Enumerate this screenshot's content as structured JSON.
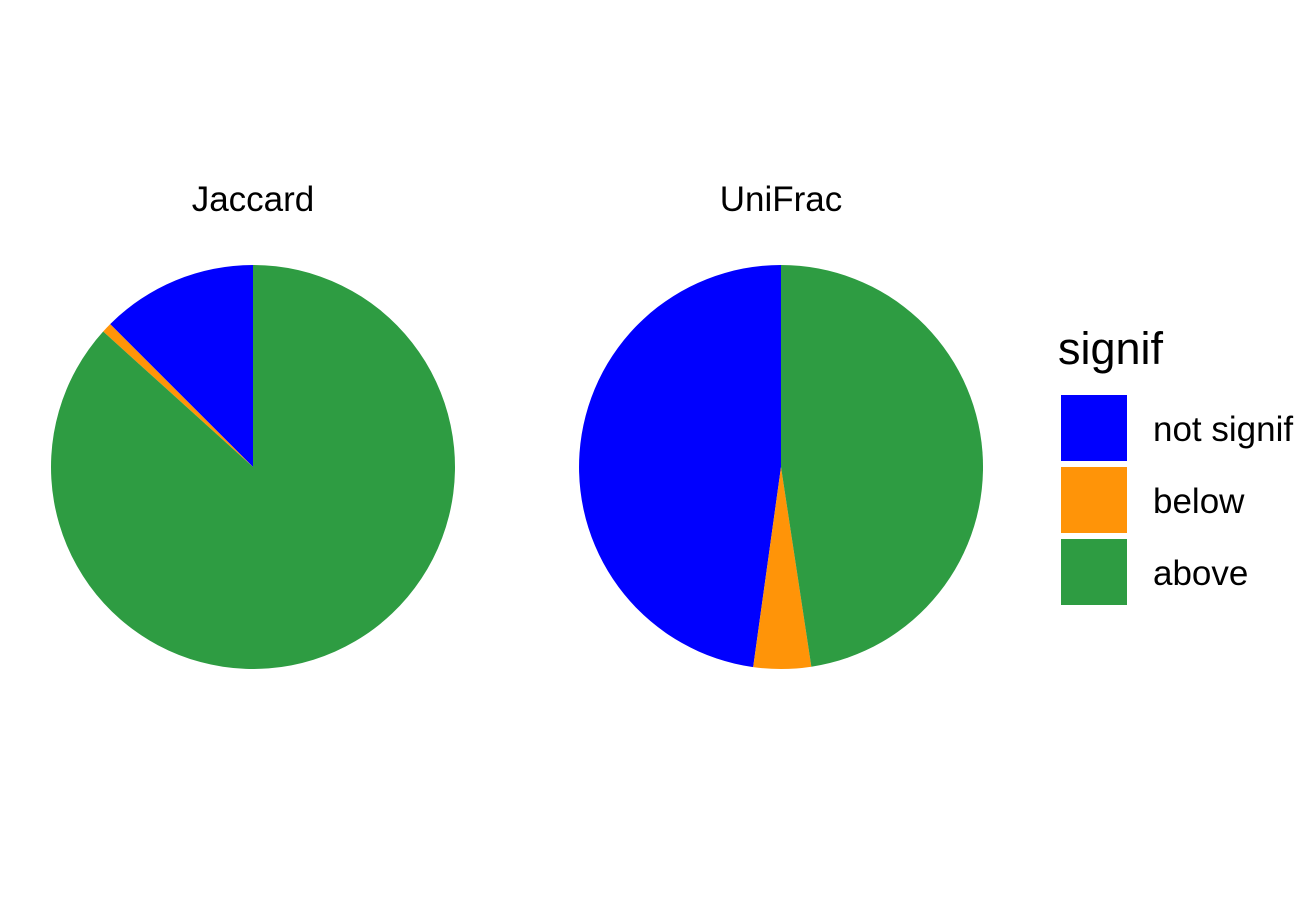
{
  "chart_data": {
    "type": "pie",
    "legend": {
      "title": "signif",
      "position": "right",
      "entries": [
        {
          "key": "not_signif",
          "label": "not signif",
          "color": "#0000FF"
        },
        {
          "key": "below",
          "label": "below",
          "color": "#FF9408"
        },
        {
          "key": "above",
          "label": "above",
          "color": "#2E9C42"
        }
      ]
    },
    "facets": [
      {
        "title": "Jaccard",
        "slices": [
          {
            "key": "not_signif",
            "label": "not signif",
            "value": 12.5
          },
          {
            "key": "below",
            "label": "below",
            "value": 0.8
          },
          {
            "key": "above",
            "label": "above",
            "value": 86.7
          }
        ]
      },
      {
        "title": "UniFrac",
        "slices": [
          {
            "key": "not_signif",
            "label": "not signif",
            "value": 47.8
          },
          {
            "key": "below",
            "label": "below",
            "value": 4.6
          },
          {
            "key": "above",
            "label": "above",
            "value": 47.6
          }
        ]
      }
    ],
    "start_angle": "12 o'clock",
    "direction": "counterclockwise",
    "grid": false
  }
}
